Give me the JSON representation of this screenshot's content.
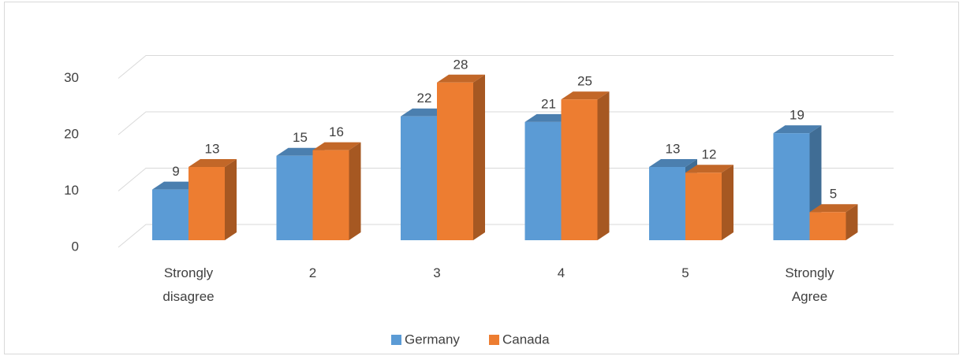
{
  "chart_data": {
    "type": "bar3d",
    "categories": [
      "Strongly disagree",
      "2",
      "3",
      "4",
      "5",
      "Strongly Agree"
    ],
    "series": [
      {
        "name": "Germany",
        "color": "#5b9bd5",
        "values": [
          9,
          15,
          22,
          21,
          13,
          19
        ]
      },
      {
        "name": "Canada",
        "color": "#ed7d31",
        "values": [
          13,
          16,
          28,
          25,
          12,
          5
        ]
      }
    ],
    "ylim": [
      0,
      30
    ],
    "yticks": [
      0,
      10,
      20,
      30
    ],
    "grid": true,
    "legend": "bottom"
  }
}
